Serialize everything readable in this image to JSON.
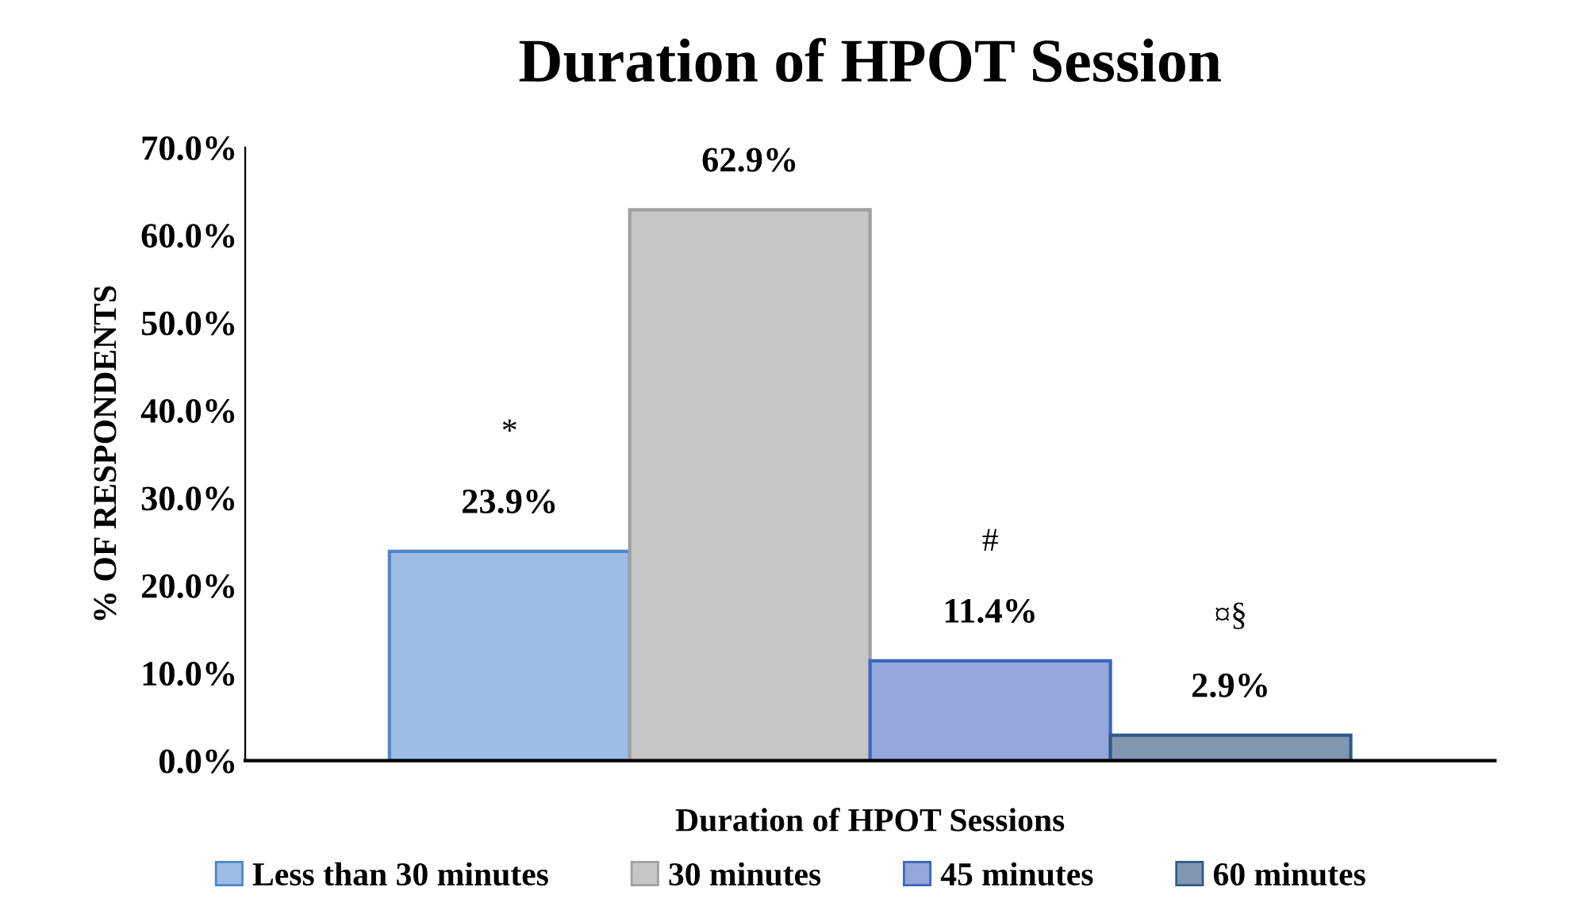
{
  "chart_data": {
    "type": "bar",
    "title": "Duration of HPOT Session",
    "xlabel": "Duration of HPOT Sessions",
    "ylabel": "% OF RESPONDENTS",
    "categories": [
      null
    ],
    "series": [
      {
        "name": "Less than 30 minutes",
        "color": "#9dbde6",
        "values": [
          23.9
        ],
        "value_labels": [
          "23.9%"
        ]
      },
      {
        "name": "30 minutes",
        "color": "#c6c6c6",
        "values": [
          62.9
        ],
        "value_labels": [
          "62.9%"
        ]
      },
      {
        "name": "45 minutes",
        "color": "#97a6da",
        "values": [
          11.4
        ],
        "value_labels": [
          "11.4%"
        ]
      },
      {
        "name": "60 minutes",
        "color": "#8497b0",
        "values": [
          2.9
        ],
        "value_labels": [
          "2.9%"
        ]
      }
    ],
    "ylim": [
      0,
      70
    ],
    "yticks": [
      {
        "value": 0,
        "label": "0.0%"
      },
      {
        "value": 10,
        "label": "10.0%"
      },
      {
        "value": 20,
        "label": "20.0%"
      },
      {
        "value": 30,
        "label": "30.0%"
      },
      {
        "value": 40,
        "label": "40.0%"
      },
      {
        "value": 50,
        "label": "50.0%"
      },
      {
        "value": 60,
        "label": "60.0%"
      },
      {
        "value": 70,
        "label": "70.0%"
      }
    ],
    "annotations": [
      "*",
      "#",
      "¤§"
    ],
    "grid": false,
    "legend": "bottom"
  }
}
